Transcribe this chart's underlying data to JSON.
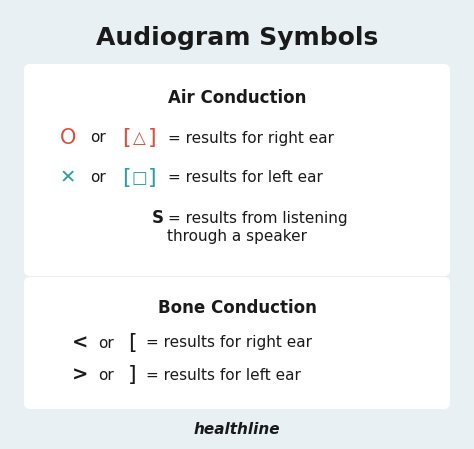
{
  "title": "Audiogram Symbols",
  "title_fontsize": 18,
  "title_fontweight": "bold",
  "bg_color": "#e8f0f4",
  "card_color": "#ffffff",
  "text_color": "#1a1a1a",
  "red_color": "#d94f3d",
  "teal_color": "#2e9ea0",
  "label_fontsize": 11,
  "section_header_fontsize": 12,
  "section_header_fontweight": "bold",
  "healthline_text": "healthline",
  "healthline_fontsize": 11,
  "air_conduction_title": "Air Conduction",
  "bone_conduction_title": "Bone Conduction"
}
